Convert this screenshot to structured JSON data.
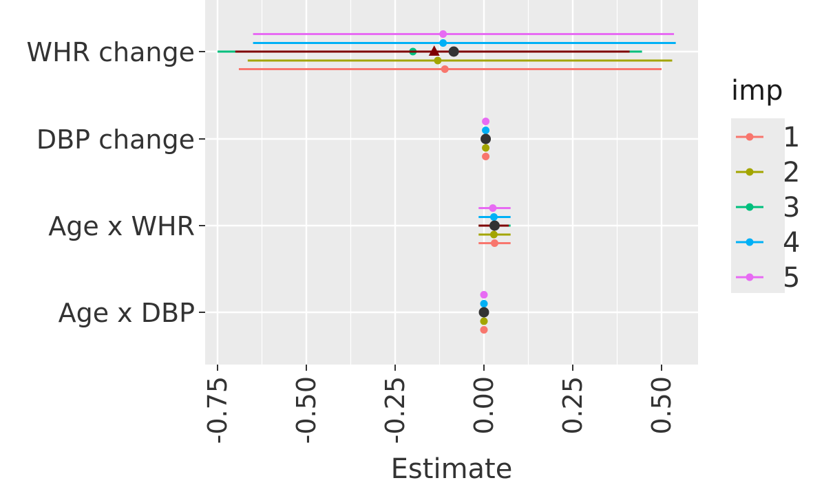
{
  "chart_data": {
    "type": "forest-plot",
    "xlabel": "Estimate",
    "xlim": [
      -0.79,
      0.6
    ],
    "xticks": [
      -0.75,
      -0.5,
      -0.25,
      0.0,
      0.25,
      0.5
    ],
    "xtick_labels": [
      "-0.75",
      "-0.50",
      "-0.25",
      "0.00",
      "0.25",
      "0.50"
    ],
    "grid": true,
    "categories": [
      "WHR change",
      "DBP change",
      "Age x WHR",
      "Age x DBP"
    ],
    "legend": {
      "title": "imp",
      "placement": "right",
      "entries": [
        "1",
        "2",
        "3",
        "4",
        "5"
      ]
    },
    "colors": {
      "1": "#F8766D",
      "2": "#A3A500",
      "3": "#00BF7D",
      "4": "#00B0F6",
      "5": "#E76BF3",
      "pooled": "#333333",
      "pooled_interval": "#7F0000",
      "panel_bg": "#EBEBEB",
      "grid": "#FFFFFF"
    },
    "series": [
      {
        "name": "1",
        "points": [
          {
            "category": "WHR change",
            "estimate": -0.11,
            "lower": -0.69,
            "upper": 0.5
          },
          {
            "category": "DBP change",
            "estimate": 0.005,
            "lower": 0.005,
            "upper": 0.005
          },
          {
            "category": "Age x WHR",
            "estimate": 0.03,
            "lower": -0.015,
            "upper": 0.075
          },
          {
            "category": "Age x DBP",
            "estimate": 0.0,
            "lower": 0.0,
            "upper": 0.0
          }
        ]
      },
      {
        "name": "2",
        "points": [
          {
            "category": "WHR change",
            "estimate": -0.13,
            "lower": -0.665,
            "upper": 0.53
          },
          {
            "category": "DBP change",
            "estimate": 0.005,
            "lower": 0.005,
            "upper": 0.005
          },
          {
            "category": "Age x WHR",
            "estimate": 0.028,
            "lower": -0.015,
            "upper": 0.075
          },
          {
            "category": "Age x DBP",
            "estimate": 0.0,
            "lower": 0.0,
            "upper": 0.0
          }
        ]
      },
      {
        "name": "3",
        "points": [
          {
            "category": "WHR change",
            "estimate": -0.2,
            "lower": -0.75,
            "upper": 0.445
          },
          {
            "category": "DBP change",
            "estimate": 0.005,
            "lower": 0.005,
            "upper": 0.005
          },
          {
            "category": "Age x WHR",
            "estimate": 0.03,
            "lower": -0.015,
            "upper": 0.075
          },
          {
            "category": "Age x DBP",
            "estimate": 0.0,
            "lower": 0.0,
            "upper": 0.0
          }
        ]
      },
      {
        "name": "4",
        "points": [
          {
            "category": "WHR change",
            "estimate": -0.115,
            "lower": -0.65,
            "upper": 0.54
          },
          {
            "category": "DBP change",
            "estimate": 0.005,
            "lower": 0.005,
            "upper": 0.005
          },
          {
            "category": "Age x WHR",
            "estimate": 0.028,
            "lower": -0.015,
            "upper": 0.075
          },
          {
            "category": "Age x DBP",
            "estimate": 0.0,
            "lower": 0.0,
            "upper": 0.0
          }
        ]
      },
      {
        "name": "5",
        "points": [
          {
            "category": "WHR change",
            "estimate": -0.115,
            "lower": -0.65,
            "upper": 0.535
          },
          {
            "category": "DBP change",
            "estimate": 0.005,
            "lower": 0.005,
            "upper": 0.005
          },
          {
            "category": "Age x WHR",
            "estimate": 0.025,
            "lower": -0.015,
            "upper": 0.075
          },
          {
            "category": "Age x DBP",
            "estimate": 0.0,
            "lower": 0.0,
            "upper": 0.0
          }
        ]
      }
    ],
    "pooled": [
      {
        "category": "WHR change",
        "estimate": -0.085,
        "lower": -0.7,
        "upper": 0.41,
        "triangle_estimate": -0.14
      },
      {
        "category": "DBP change",
        "estimate": 0.005,
        "lower": 0.005,
        "upper": 0.005
      },
      {
        "category": "Age x WHR",
        "estimate": 0.03,
        "lower": -0.015,
        "upper": 0.07
      },
      {
        "category": "Age x DBP",
        "estimate": 0.0,
        "lower": 0.0,
        "upper": 0.0
      }
    ]
  }
}
